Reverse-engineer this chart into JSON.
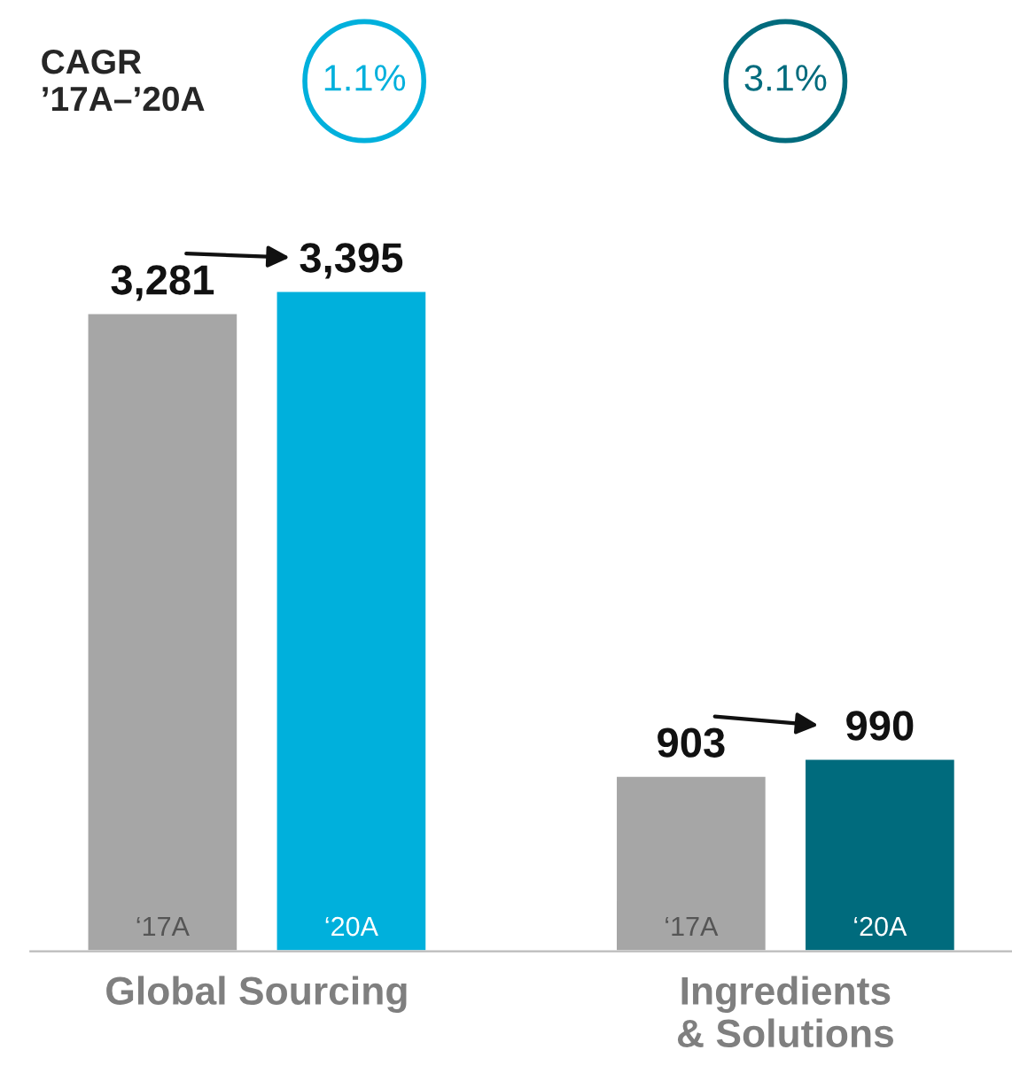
{
  "chart_data": {
    "type": "bar",
    "categories": [
      "Global Sourcing",
      "Ingredients & Solutions"
    ],
    "series": [
      {
        "name": "‘17A",
        "color": "#a6a6a6",
        "values": [
          3281,
          903
        ],
        "value_labels": [
          "3,281",
          "903"
        ]
      },
      {
        "name": "‘20A",
        "colors": [
          "#00b0dc",
          "#006b7d"
        ],
        "values": [
          3395,
          990
        ],
        "value_labels": [
          "3,395",
          "990"
        ]
      }
    ],
    "legend": false,
    "grid": false,
    "annotations": [
      "CAGR\n’17A–’20A",
      "1.1%",
      "3.1%"
    ]
  }
}
